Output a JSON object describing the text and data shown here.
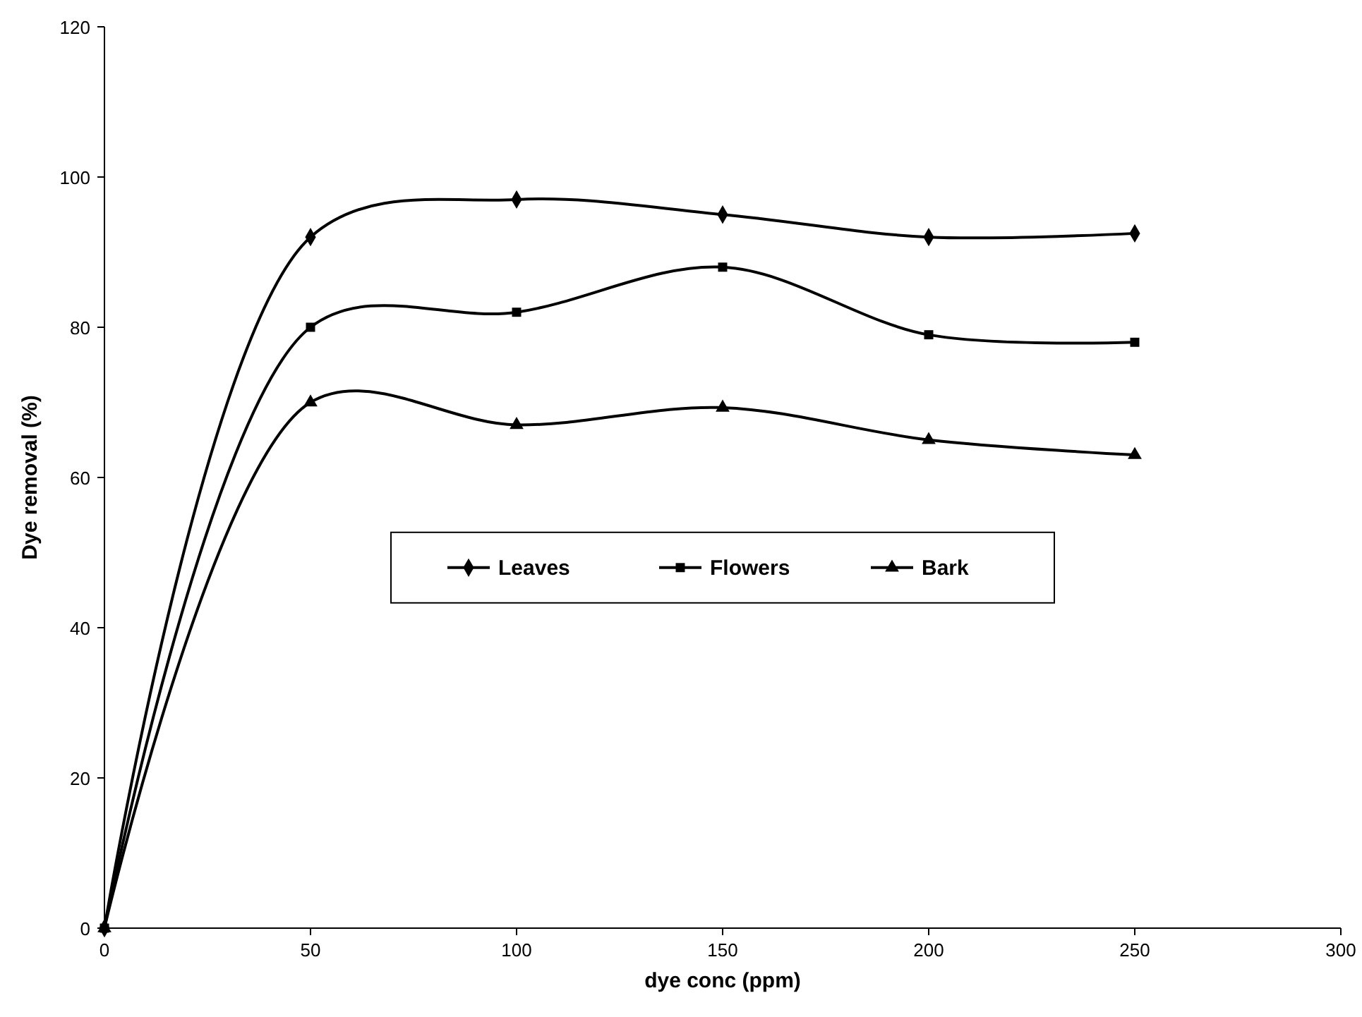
{
  "chart_data": {
    "type": "line",
    "xlabel": "dye conc (ppm)",
    "ylabel": "Dye removal (%)",
    "x": [
      0,
      50,
      100,
      150,
      200,
      250
    ],
    "xlim": [
      0,
      300
    ],
    "xticks": [
      0,
      50,
      100,
      150,
      200,
      250,
      300
    ],
    "ylim": [
      0,
      120
    ],
    "yticks": [
      0,
      20,
      40,
      60,
      80,
      100,
      120
    ],
    "grid": false,
    "legend": "center",
    "line_style": "solid",
    "series": [
      {
        "name": "Leaves",
        "color": "#000000",
        "marker": "diamond",
        "values": [
          0,
          92,
          97,
          95,
          92,
          92.5
        ]
      },
      {
        "name": "Flowers",
        "color": "#000000",
        "marker": "square",
        "values": [
          0,
          80,
          82,
          88,
          79,
          78
        ]
      },
      {
        "name": "Bark",
        "color": "#000000",
        "marker": "triangle",
        "values": [
          0,
          70,
          67,
          69.3,
          65,
          63
        ]
      }
    ]
  }
}
